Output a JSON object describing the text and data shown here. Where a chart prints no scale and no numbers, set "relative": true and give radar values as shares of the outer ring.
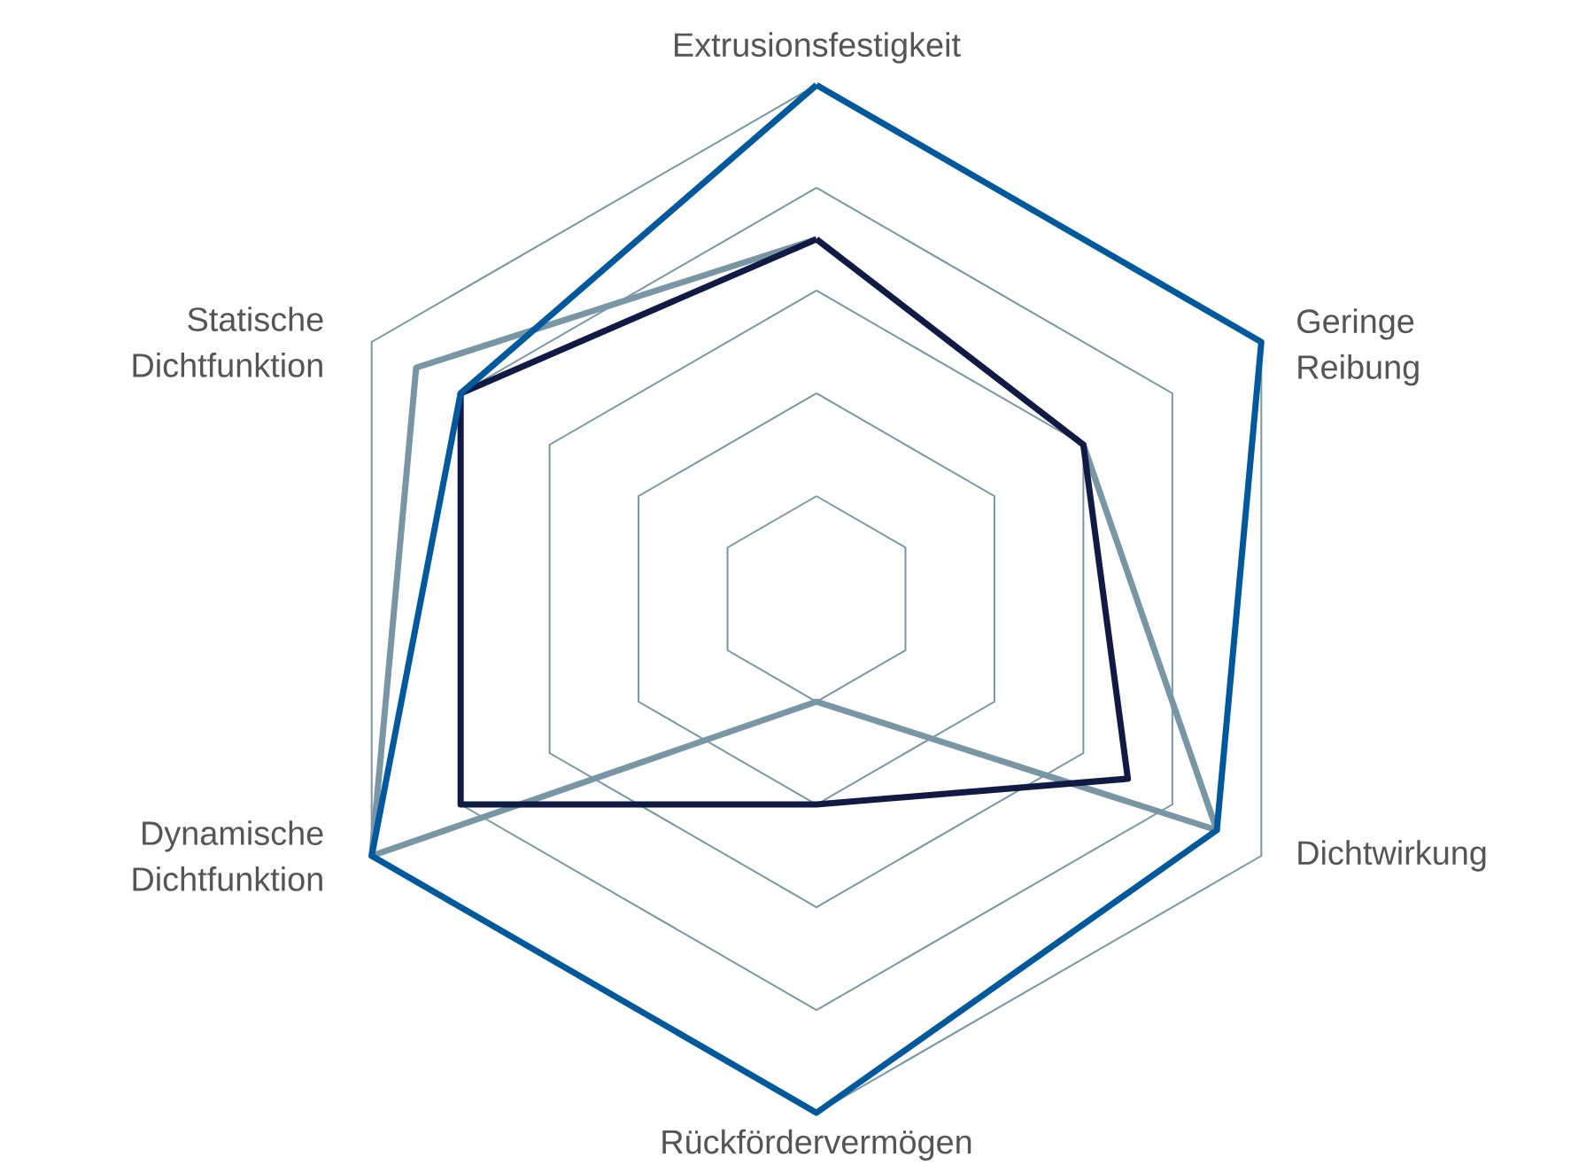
{
  "chart_data": {
    "type": "radar",
    "relative": true,
    "grid": true,
    "categories": [
      "Extrusionsfestigkeit",
      "Geringe Reibung",
      "Dichtwirkung",
      "Rückfördervermögen",
      "Dynamische Dichtfunktion",
      "Statische Dichtfunktion"
    ],
    "series": [
      {
        "color": "#7896a3",
        "values": [
          0.7,
          0.6,
          0.9,
          0.2,
          1.0,
          0.9
        ]
      },
      {
        "color": "#111a45",
        "values": [
          0.7,
          0.6,
          0.7,
          0.4,
          0.8,
          0.8
        ]
      },
      {
        "color": "#00599c",
        "values": [
          1.0,
          1.0,
          0.9,
          1.0,
          1.0,
          0.8
        ]
      }
    ]
  }
}
